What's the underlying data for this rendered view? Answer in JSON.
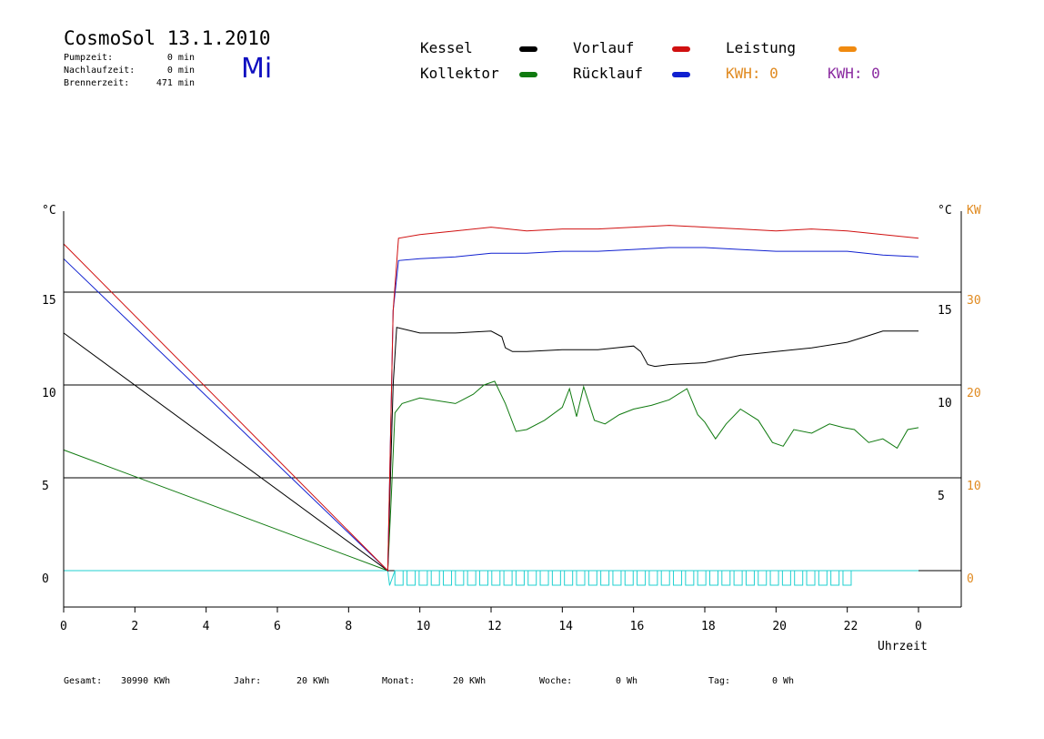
{
  "header": {
    "title": "CosmoSol 13.1.2010",
    "day": "Mi",
    "pump": {
      "label": "Pumpzeit:",
      "value": "0 min"
    },
    "afterrun": {
      "label": "Nachlaufzeit:",
      "value": "0 min"
    },
    "burner": {
      "label": "Brennerzeit:",
      "value": "471 min"
    }
  },
  "legend": {
    "kessel": "Kessel",
    "kollektor": "Kollektor",
    "vorlauf": "Vorlauf",
    "ruecklauf": "Rücklauf",
    "leistung": "Leistung",
    "kwh1": "KWH: 0",
    "kwh2": "KWH: 0"
  },
  "colors": {
    "kessel": "#000000",
    "kollektor": "#107a10",
    "vorlauf": "#d01010",
    "ruecklauf": "#1020d0",
    "leistung": "#f08a10",
    "kwh1": "#e08a20",
    "kwh2": "#8a2aa0",
    "pump": "#20d0d0"
  },
  "chart_data": {
    "type": "line",
    "left_axis_unit": "°C",
    "right_axis_unit_1": "°C",
    "right_axis_unit_2": "KW",
    "xlabel": "Uhrzeit",
    "xlim": [
      0,
      24
    ],
    "ylim": [
      -1,
      19
    ],
    "x_tick_labels": [
      "0",
      "2",
      "4",
      "6",
      "8",
      "10",
      "12",
      "14",
      "16",
      "18",
      "20",
      "22",
      "0"
    ],
    "left_ticks": [
      0,
      5,
      10,
      15
    ],
    "right_ticks_celsius": [
      "5",
      "10",
      "15"
    ],
    "right_ticks_kw": [
      "0",
      "10",
      "20",
      "30"
    ],
    "grid_y": [
      0,
      5,
      10,
      15
    ],
    "series": [
      {
        "name": "Vorlauf",
        "x": [
          0,
          9.1,
          9.25,
          9.4,
          10,
          11,
          12,
          13,
          14,
          15,
          16,
          17,
          18,
          19,
          20,
          21,
          22,
          23,
          24
        ],
        "y": [
          17.6,
          0,
          14,
          17.9,
          18.1,
          18.3,
          18.5,
          18.3,
          18.4,
          18.4,
          18.5,
          18.6,
          18.5,
          18.4,
          18.3,
          18.4,
          18.3,
          18.1,
          17.9
        ]
      },
      {
        "name": "Rücklauf",
        "x": [
          0,
          9.1,
          9.25,
          9.4,
          10,
          11,
          12,
          13,
          14,
          15,
          16,
          17,
          18,
          19,
          20,
          21,
          22,
          23,
          24
        ],
        "y": [
          16.8,
          0,
          14,
          16.7,
          16.8,
          16.9,
          17.1,
          17.1,
          17.2,
          17.2,
          17.3,
          17.4,
          17.4,
          17.3,
          17.2,
          17.2,
          17.2,
          17.0,
          16.9
        ]
      },
      {
        "name": "Kessel",
        "x": [
          0,
          9.1,
          9.25,
          9.35,
          10,
          11,
          12,
          12.3,
          12.4,
          12.6,
          13,
          14,
          15,
          16,
          16.2,
          16.4,
          16.6,
          17,
          18,
          19,
          20,
          21,
          22,
          22.5,
          23,
          24
        ],
        "y": [
          12.8,
          0,
          10,
          13.1,
          12.8,
          12.8,
          12.9,
          12.6,
          12.0,
          11.8,
          11.8,
          11.9,
          11.9,
          12.1,
          11.8,
          11.1,
          11.0,
          11.1,
          11.2,
          11.6,
          11.8,
          12.0,
          12.3,
          12.6,
          12.9,
          12.9
        ]
      },
      {
        "name": "Kollektor",
        "x": [
          0,
          9.1,
          9.2,
          9.3,
          9.5,
          10,
          11,
          11.5,
          11.8,
          12.1,
          12.4,
          12.7,
          13,
          13.5,
          14,
          14.2,
          14.4,
          14.6,
          14.9,
          15.2,
          15.6,
          16,
          16.5,
          17,
          17.5,
          17.8,
          18,
          18.3,
          18.6,
          19,
          19.5,
          19.9,
          20.2,
          20.5,
          21,
          21.5,
          21.9,
          22.2,
          22.6,
          23,
          23.4,
          23.7,
          24
        ],
        "y": [
          6.5,
          0,
          4,
          8.5,
          9.0,
          9.3,
          9.0,
          9.5,
          10.0,
          10.2,
          9.0,
          7.5,
          7.6,
          8.1,
          8.8,
          9.8,
          8.3,
          9.9,
          8.1,
          7.9,
          8.4,
          8.7,
          8.9,
          9.2,
          9.8,
          8.4,
          8.0,
          7.1,
          7.9,
          8.7,
          8.1,
          6.9,
          6.7,
          7.6,
          7.4,
          7.9,
          7.7,
          7.6,
          6.9,
          7.1,
          6.6,
          7.6,
          7.7
        ]
      },
      {
        "name": "Pumpe",
        "x": [
          0,
          9.1,
          9.15,
          9.3,
          24
        ],
        "y": [
          0,
          0,
          -0.8,
          0,
          0
        ]
      }
    ]
  },
  "footer": {
    "gesamt": {
      "label": "Gesamt:",
      "value": "30990 KWh"
    },
    "jahr": {
      "label": "Jahr:",
      "value": "20 KWh"
    },
    "monat": {
      "label": "Monat:",
      "value": "20 KWh"
    },
    "woche": {
      "label": "Woche:",
      "value": "0 Wh"
    },
    "tag": {
      "label": "Tag:",
      "value": "0 Wh"
    }
  }
}
